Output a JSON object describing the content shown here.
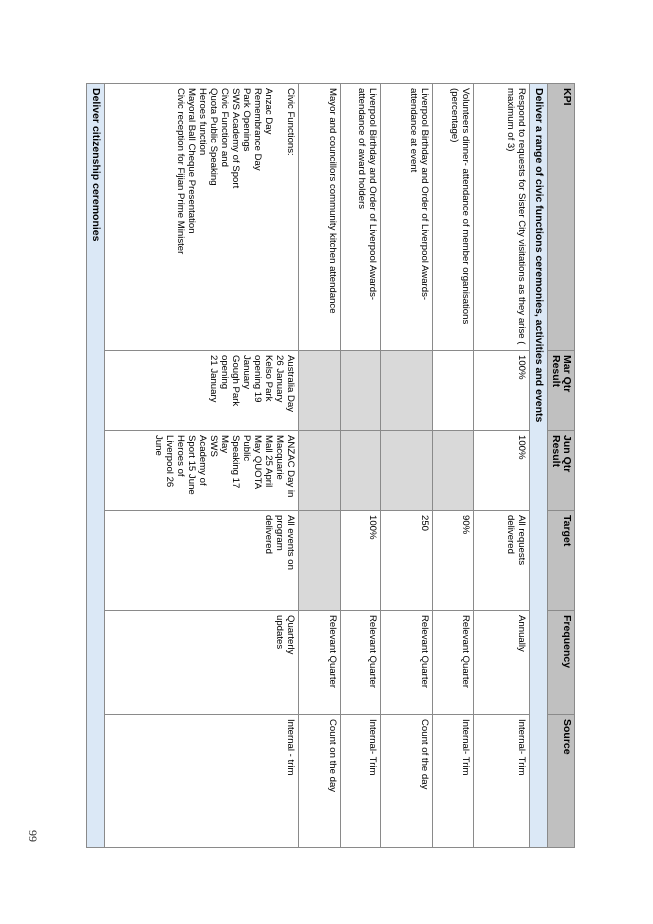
{
  "headers": {
    "kpi": "KPI",
    "mar": "Mar Qtr Result",
    "jun": "Jun Qtr Result",
    "target": "Target",
    "frequency": "Frequency",
    "source": "Source"
  },
  "section1": "Deliver a range of civic functions ceremonies, activities and events",
  "rows": [
    {
      "kpi": "Respond to requests for Sister City visitations as they arise ( maximum of 3)",
      "mar": "100%",
      "jun": "100%",
      "target": "All requests delivered",
      "frequency": "Annually",
      "source": "Internal- Trim"
    },
    {
      "kpi": "Volunteers dinner- attendance of member organisations (percentage)",
      "mar": "",
      "jun": "",
      "target": "90%",
      "frequency": "Relevant Quarter",
      "source": "Internal- Trim"
    },
    {
      "kpi": "Liverpool Birthday and Order of Liverpool Awards- attendance at event",
      "mar": "",
      "jun": "",
      "target": "250",
      "frequency": "Relevant Quarter",
      "source": "Count of the day"
    },
    {
      "kpi": "Liverpool Birthday and Order of Liverpool Awards- attendance of award holders",
      "mar": "",
      "jun": "",
      "target": "100%",
      "frequency": "Relevant Quarter",
      "source": "Internal- Trim"
    },
    {
      "kpi": "Mayor and councillors community kitchen attendance",
      "mar": "",
      "jun": "",
      "target": "",
      "frequency": "Relevant Quarter",
      "source": "Count on the day"
    }
  ],
  "civic": {
    "kpi_title": "Civic Functions:",
    "kpi_items": [
      "Anzac Day",
      "Remembrance Day",
      "Park Openings",
      "SWS Academy of Sport",
      "Civic Function and",
      "Quota Public Speaking",
      "Heroes function",
      "Mayoral Ball Cheque Presentation",
      "Civic reception for Fijian Prime Minister"
    ],
    "mar_lines": [
      "Australia Day",
      "26 January",
      "Kelso Park",
      "opening 19",
      "January",
      "Gough Park",
      "opening",
      "21 January"
    ],
    "jun_lines": [
      "ANZAC Day in",
      "Macquarie",
      "Mall 25 April",
      "May QUOTA",
      "Public",
      "Speaking 17",
      "May",
      "SWS",
      "Academy of",
      "Sport 15 June",
      "Heroes of",
      "Liverpool 26",
      "June"
    ],
    "target_lines": [
      "All events on",
      "program",
      "delivered"
    ],
    "frequency_lines": [
      "Quarterly",
      "updates"
    ],
    "source": "Internal - trim"
  },
  "section2": "Deliver citizenship ceremonies",
  "page_number": "99"
}
